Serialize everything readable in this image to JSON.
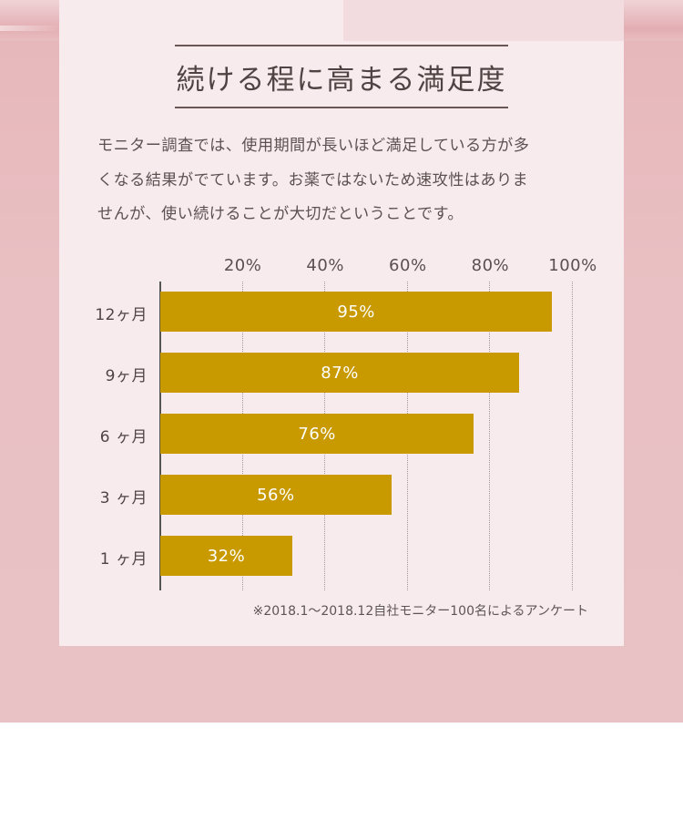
{
  "title": "続ける程に高まる満足度",
  "description": [
    "モニター調査では、使用期間が長いほど満足している方が多",
    "くなる結果がでています。お薬ではないため速攻性はありま",
    "せんが、使い続けることが大切だということです。"
  ],
  "chart_data": {
    "type": "bar",
    "orientation": "horizontal",
    "categories": [
      "12ヶ月",
      "9ヶ月",
      "6 ヶ月",
      "3 ヶ月",
      "1 ヶ月"
    ],
    "values": [
      95,
      87,
      76,
      56,
      32
    ],
    "value_labels": [
      "95%",
      "87%",
      "76%",
      "56%",
      "32%"
    ],
    "x_ticks": [
      "20%",
      "40%",
      "60%",
      "80%",
      "100%"
    ],
    "x_tick_values": [
      20,
      40,
      60,
      80,
      100
    ],
    "xlim": [
      0,
      100
    ],
    "grid": "vertical dotted",
    "bar_color": "#c89a00"
  },
  "note": "※2018.1〜2018.12自社モニター100名によるアンケート",
  "colors": {
    "background": "#e8c0c3",
    "card": "#f8ebed",
    "bar": "#c89a00",
    "text": "#4f4343"
  }
}
